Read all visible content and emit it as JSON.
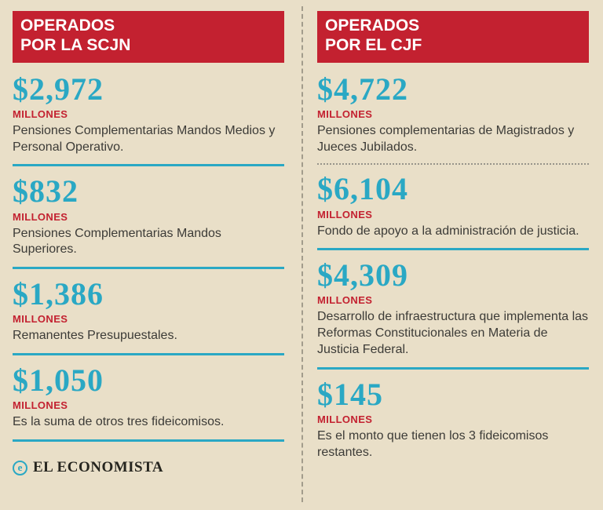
{
  "colors": {
    "background": "#e9dfc8",
    "header_red": "#c32130",
    "accent_teal": "#2aa8c4",
    "body_text": "#3c3b37"
  },
  "left": {
    "header_line1": "OPERADOS",
    "header_line2": "POR LA SCJN",
    "items": [
      {
        "amount": "$2,972",
        "unit": "MILLONES",
        "desc": "Pensiones Complementarias Mandos Medios y Personal Operativo."
      },
      {
        "amount": "$832",
        "unit": "MILLONES",
        "desc": "Pensiones Complementarias Mandos Superiores."
      },
      {
        "amount": "$1,386",
        "unit": "MILLONES",
        "desc": "Remanentes Presupuestales."
      },
      {
        "amount": "$1,050",
        "unit": "MILLONES",
        "desc": "Es la suma de otros tres fideicomisos."
      }
    ]
  },
  "right": {
    "header_line1": "OPERADOS",
    "header_line2": "POR EL CJF",
    "items": [
      {
        "amount": "$4,722",
        "unit": "MILLONES",
        "desc": "Pensiones complementarias de Magistrados y Jueces Jubilados."
      },
      {
        "amount": "$6,104",
        "unit": "MILLONES",
        "desc": "Fondo de apoyo a la administración de justicia."
      },
      {
        "amount": "$4,309",
        "unit": "MILLONES",
        "desc": "Desarrollo de infraestructura que implementa las Reformas Constitucionales en Materia de Justicia Federal."
      },
      {
        "amount": "$145",
        "unit": "MILLONES",
        "desc": "Es el monto que tienen los 3 fideicomisos restantes."
      }
    ]
  },
  "footer": {
    "logo_icon": "e",
    "logo_text": "EL ECONOMISTA"
  },
  "chart_data": {
    "type": "table",
    "title": "",
    "unit_label": "MILLONES",
    "groups": [
      {
        "label": "OPERADOS POR LA SCJN",
        "rows": [
          {
            "concept": "Pensiones Complementarias Mandos Medios y Personal Operativo.",
            "value": 2972
          },
          {
            "concept": "Pensiones Complementarias Mandos Superiores.",
            "value": 832
          },
          {
            "concept": "Remanentes Presupuestales.",
            "value": 1386
          },
          {
            "concept": "Es la suma de otros tres fideicomisos.",
            "value": 1050
          }
        ]
      },
      {
        "label": "OPERADOS POR EL CJF",
        "rows": [
          {
            "concept": "Pensiones complementarias de Magistrados y Jueces Jubilados.",
            "value": 4722
          },
          {
            "concept": "Fondo de apoyo a la administración de justicia.",
            "value": 6104
          },
          {
            "concept": "Desarrollo de infraestructura que implementa las Reformas Constitucionales en Materia de Justicia Federal.",
            "value": 4309
          },
          {
            "concept": "Es el monto que tienen los 3 fideicomisos restantes.",
            "value": 145
          }
        ]
      }
    ]
  }
}
